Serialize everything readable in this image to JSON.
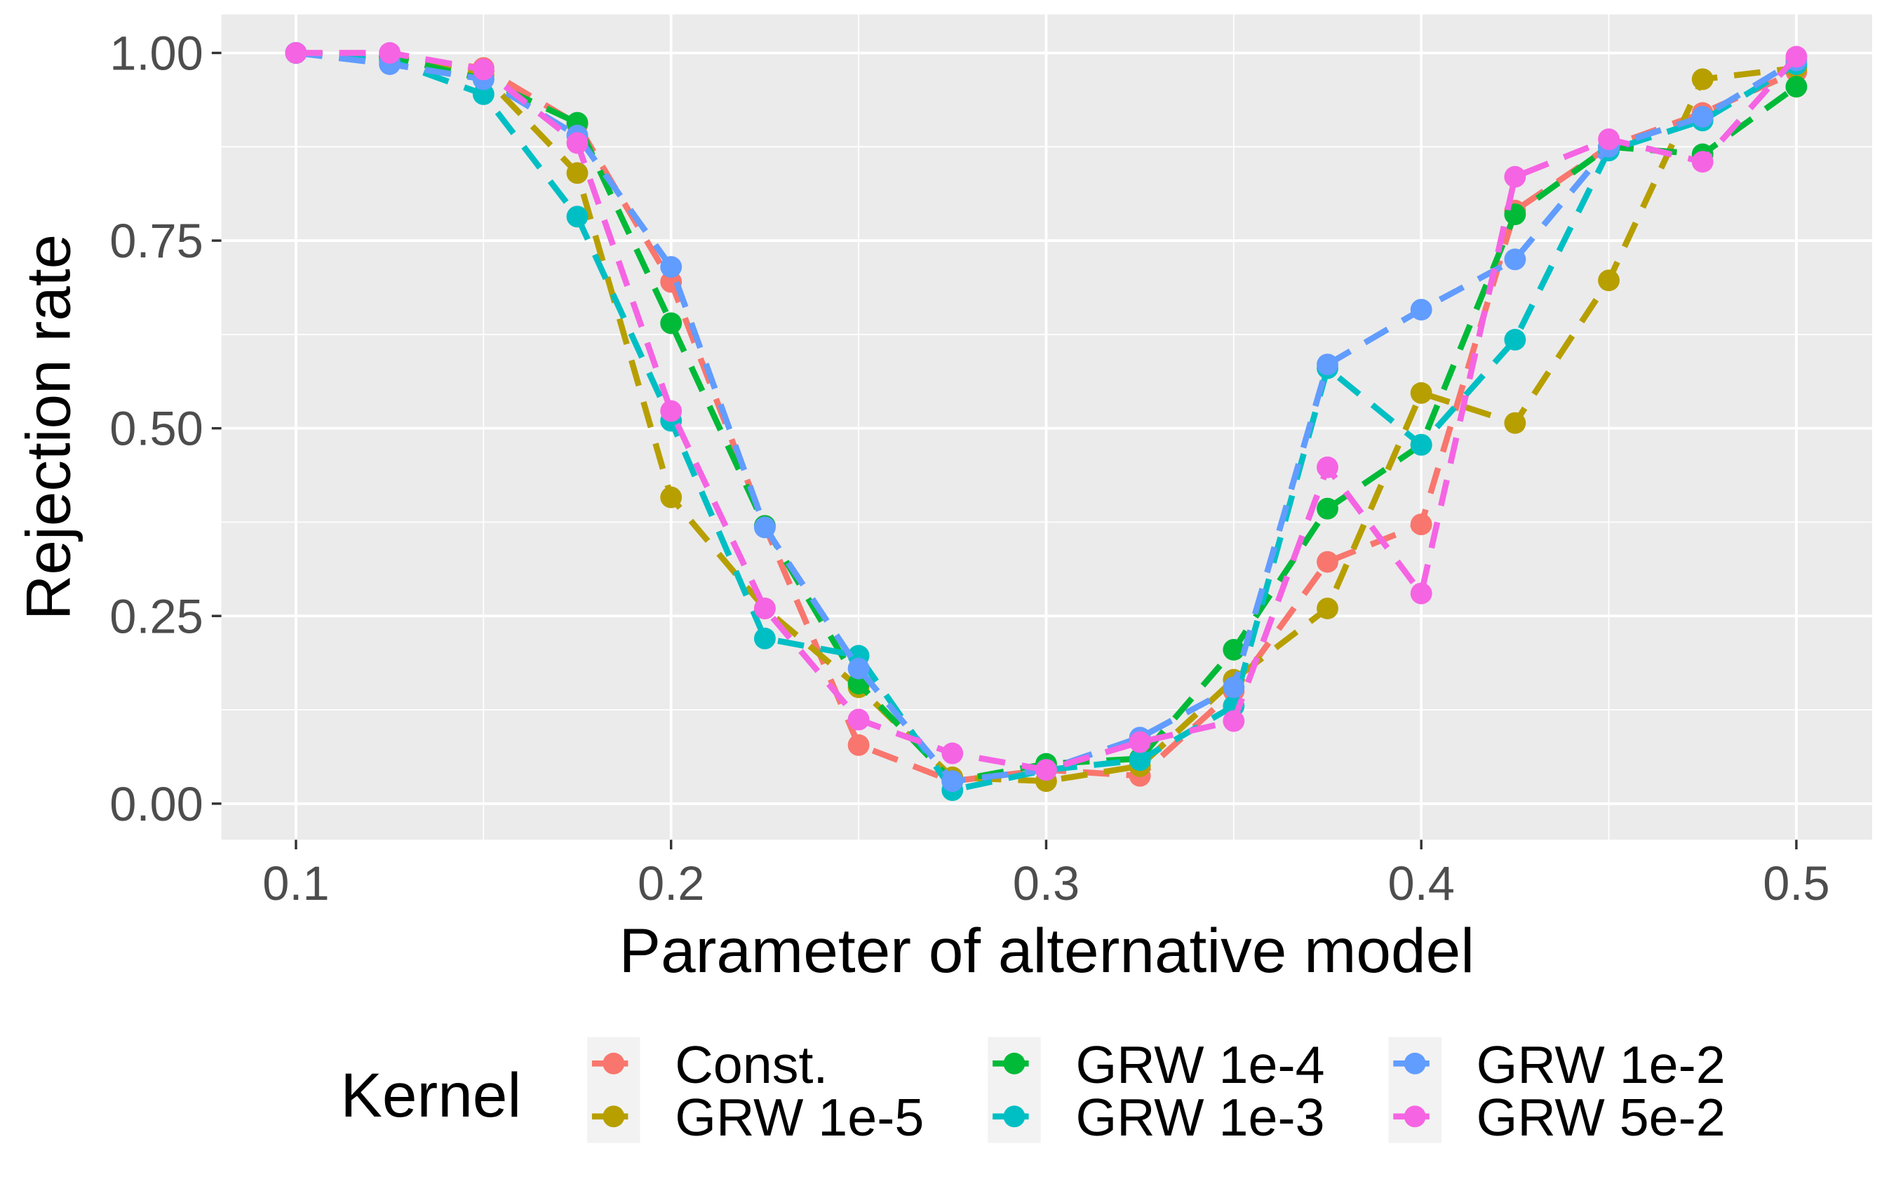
{
  "chart_data": {
    "type": "line",
    "title": "",
    "xlabel": "Parameter of alternative model",
    "ylabel": "Rejection rate",
    "xlim": [
      0.08,
      0.52
    ],
    "ylim": [
      -0.05,
      1.05
    ],
    "x_ticks": [
      0.1,
      0.2,
      0.3,
      0.4,
      0.5
    ],
    "x_tick_labels": [
      "0.1",
      "0.2",
      "0.3",
      "0.4",
      "0.5"
    ],
    "y_ticks": [
      0,
      0.25,
      0.5,
      0.75,
      1
    ],
    "y_tick_labels": [
      "0.00",
      "0.25",
      "0.50",
      "0.75",
      "1.00"
    ],
    "grid": true,
    "legend": {
      "title": "Kernel",
      "placement": "bottom"
    },
    "x": [
      0.1,
      0.125,
      0.15,
      0.175,
      0.2,
      0.225,
      0.25,
      0.275,
      0.3,
      0.325,
      0.35,
      0.375,
      0.4,
      0.425,
      0.45,
      0.475,
      0.5
    ],
    "series": [
      {
        "name": "Const.",
        "color": "#F8766D",
        "values": [
          1.0,
          0.995,
          0.98,
          0.905,
          0.695,
          0.37,
          0.078,
          0.03,
          0.045,
          0.037,
          0.15,
          0.322,
          0.372,
          0.79,
          0.875,
          0.92,
          0.975
        ]
      },
      {
        "name": "GRW 1e-5",
        "color": "#B79F00",
        "values": [
          1.0,
          0.995,
          0.97,
          0.84,
          0.408,
          0.26,
          0.155,
          0.035,
          0.03,
          0.05,
          0.165,
          0.26,
          0.547,
          0.507,
          0.697,
          0.965,
          0.98
        ]
      },
      {
        "name": "GRW 1e-4",
        "color": "#00BA38",
        "values": [
          1.0,
          0.995,
          0.965,
          0.907,
          0.64,
          0.37,
          0.16,
          0.03,
          0.053,
          0.06,
          0.205,
          0.393,
          0.478,
          0.785,
          0.875,
          0.865,
          0.955
        ]
      },
      {
        "name": "GRW 1e-3",
        "color": "#00BFC4",
        "values": [
          1.0,
          0.99,
          0.945,
          0.782,
          0.51,
          0.22,
          0.197,
          0.018,
          0.045,
          0.058,
          0.13,
          0.58,
          0.478,
          0.618,
          0.87,
          0.91,
          0.985
        ]
      },
      {
        "name": "GRW 1e-2",
        "color": "#619CFF",
        "values": [
          1.0,
          0.985,
          0.965,
          0.89,
          0.715,
          0.368,
          0.18,
          0.03,
          0.045,
          0.088,
          0.155,
          0.585,
          0.658,
          0.725,
          0.875,
          0.915,
          0.99
        ]
      },
      {
        "name": "GRW 5e-2",
        "color": "#F564E3",
        "values": [
          1.0,
          1.0,
          0.978,
          0.88,
          0.523,
          0.26,
          0.112,
          0.067,
          0.045,
          0.082,
          0.11,
          0.448,
          0.28,
          0.835,
          0.885,
          0.855,
          0.995
        ]
      }
    ]
  }
}
